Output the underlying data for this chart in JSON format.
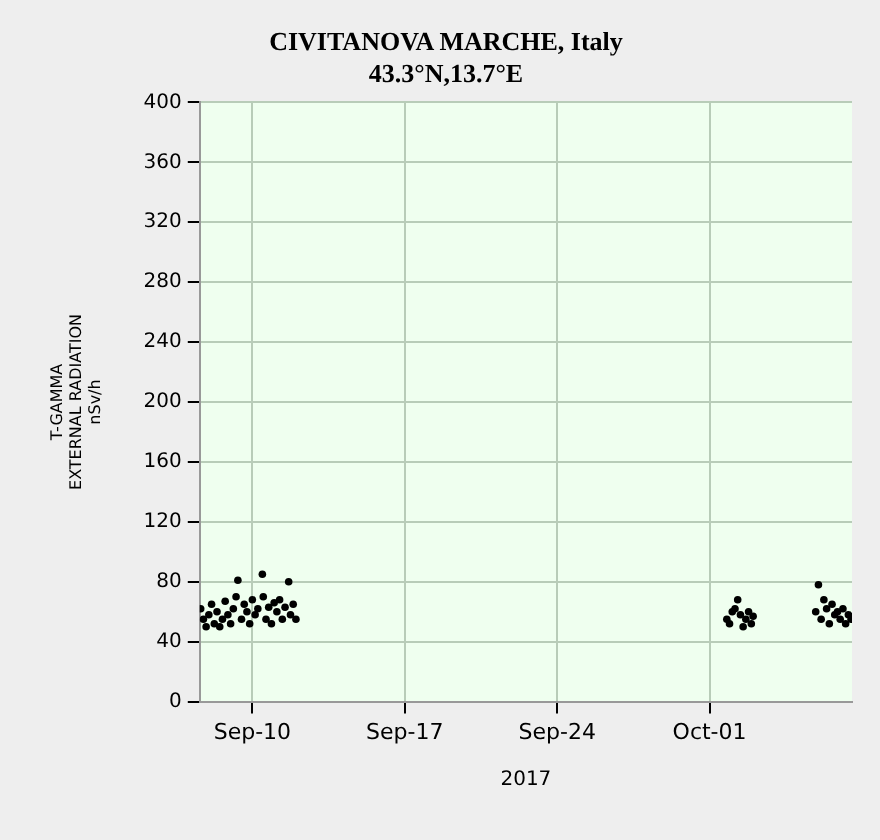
{
  "chart_data": {
    "type": "scatter",
    "title": "CIVITANOVA MARCHE, Italy",
    "subtitle": "43.3°N,13.7°E",
    "xlabel": "2017",
    "ylabel": "T-GAMMA\nEXTERNAL RADIATION\nnSv/h",
    "x": [
      "2017-09-07T15:00",
      "2017-09-07T18:00",
      "2017-09-07T21:00",
      "2017-09-08T00:00",
      "2017-09-08T03:00",
      "2017-09-08T06:00",
      "2017-09-08T09:00",
      "2017-09-08T12:00",
      "2017-09-08T15:00",
      "2017-09-08T18:00",
      "2017-09-08T21:00",
      "2017-09-09T00:00",
      "2017-09-09T03:00",
      "2017-09-09T06:00",
      "2017-09-09T08:00",
      "2017-09-09T12:00",
      "2017-09-09T15:00",
      "2017-09-09T18:00",
      "2017-09-09T21:00",
      "2017-09-10T00:00",
      "2017-09-10T03:00",
      "2017-09-10T06:00",
      "2017-09-10T11:00",
      "2017-09-10T12:00",
      "2017-09-10T15:00",
      "2017-09-10T18:00",
      "2017-09-10T21:00",
      "2017-09-11T00:00",
      "2017-09-11T03:00",
      "2017-09-11T06:00",
      "2017-09-11T09:00",
      "2017-09-11T12:00",
      "2017-09-11T16:00",
      "2017-09-11T18:00",
      "2017-09-11T21:00",
      "2017-09-12T00:00",
      "2017-10-01T19:00",
      "2017-10-01T22:00",
      "2017-10-02T01:00",
      "2017-10-02T04:00",
      "2017-10-02T07:00",
      "2017-10-02T10:00",
      "2017-10-02T13:00",
      "2017-10-02T16:00",
      "2017-10-02T19:00",
      "2017-10-02T22:00",
      "2017-10-03T00:00",
      "2017-10-05T21:00",
      "2017-10-06T00:00",
      "2017-10-06T03:00",
      "2017-10-06T06:00",
      "2017-10-06T09:00",
      "2017-10-06T12:00",
      "2017-10-06T15:00",
      "2017-10-06T18:00",
      "2017-10-06T21:00",
      "2017-10-07T00:00",
      "2017-10-07T03:00",
      "2017-10-07T06:00",
      "2017-10-07T09:00",
      "2017-10-07T12:00"
    ],
    "series": [
      {
        "color": "#000000",
        "values": [
          62,
          55,
          50,
          58,
          65,
          52,
          60,
          50,
          55,
          67,
          58,
          52,
          62,
          70,
          81,
          55,
          65,
          60,
          52,
          68,
          58,
          62,
          85,
          70,
          55,
          63,
          52,
          66,
          60,
          68,
          55,
          63,
          80,
          58,
          65,
          55,
          55,
          52,
          60,
          62,
          68,
          58,
          50,
          55,
          60,
          52,
          57,
          60,
          78,
          55,
          68,
          62,
          52,
          65,
          58,
          60,
          55,
          62,
          52,
          58,
          55
        ]
      }
    ],
    "xlim": [
      "2017-09-07T14:00",
      "2017-10-07T13:00"
    ],
    "xticks": [
      {
        "value": "2017-09-10",
        "label": "Sep-10"
      },
      {
        "value": "2017-09-17",
        "label": "Sep-17"
      },
      {
        "value": "2017-09-24",
        "label": "Sep-24"
      },
      {
        "value": "2017-10-01",
        "label": "Oct-01"
      }
    ],
    "ylim": [
      0,
      400
    ],
    "yticks": [
      0,
      40,
      80,
      120,
      160,
      200,
      240,
      280,
      320,
      360,
      400
    ],
    "grid": true,
    "legend": false,
    "marker": "circle"
  }
}
